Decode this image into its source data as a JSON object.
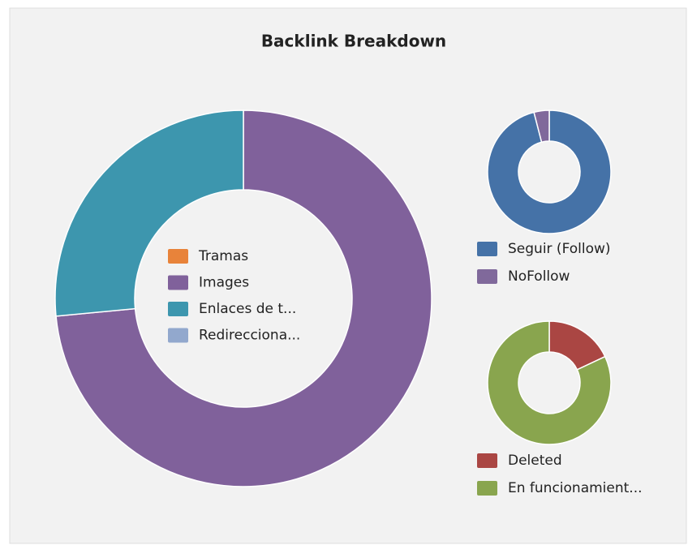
{
  "chart_data": [
    {
      "type": "donut",
      "title": "Backlink Breakdown",
      "categories": [
        "Tramas",
        "Images",
        "Enlaces de t...",
        "Redirecciona..."
      ],
      "values": [
        0,
        73.5,
        26.5,
        0
      ],
      "colors": [
        "#e8833a",
        "#80619b",
        "#3d96ae",
        "#92a8cd"
      ]
    },
    {
      "type": "donut",
      "categories": [
        "Seguir (Follow)",
        "NoFollow"
      ],
      "values": [
        96,
        4
      ],
      "colors": [
        "#4572a7",
        "#80699b"
      ]
    },
    {
      "type": "donut",
      "categories": [
        "Deleted",
        "En funcionamient..."
      ],
      "values": [
        18,
        82
      ],
      "colors": [
        "#aa4643",
        "#89a54e"
      ]
    }
  ]
}
